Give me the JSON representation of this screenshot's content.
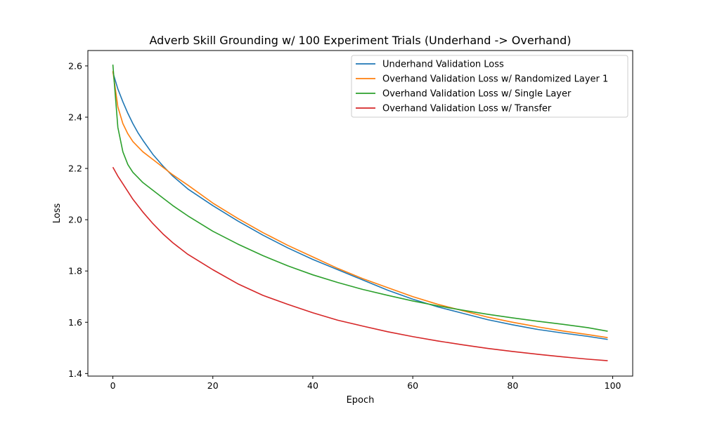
{
  "chart_data": {
    "type": "line",
    "title": "Adverb Skill Grounding w/ 100 Experiment Trials (Underhand -> Overhand)",
    "xlabel": "Epoch",
    "ylabel": "Loss",
    "xlim": [
      -5,
      104
    ],
    "ylim": [
      1.39,
      2.66
    ],
    "xticks": [
      0,
      20,
      40,
      60,
      80,
      100
    ],
    "yticks": [
      1.4,
      1.6,
      1.8,
      2.0,
      2.2,
      2.4,
      2.6
    ],
    "xtick_labels": [
      "0",
      "20",
      "40",
      "60",
      "80",
      "100"
    ],
    "ytick_labels": [
      "1.4",
      "1.6",
      "1.8",
      "2.0",
      "2.2",
      "2.4",
      "2.6"
    ],
    "grid": false,
    "legend_position": "top-right",
    "series": [
      {
        "name": "Underhand Validation Loss",
        "color": "#1f77b4",
        "x": [
          0,
          1,
          2,
          3,
          4,
          5,
          6,
          8,
          10,
          12,
          15,
          20,
          25,
          30,
          35,
          40,
          45,
          50,
          55,
          60,
          65,
          70,
          75,
          80,
          85,
          90,
          95,
          99
        ],
        "y": [
          2.575,
          2.51,
          2.46,
          2.415,
          2.375,
          2.34,
          2.31,
          2.255,
          2.21,
          2.17,
          2.12,
          2.055,
          1.995,
          1.94,
          1.89,
          1.845,
          1.805,
          1.765,
          1.725,
          1.69,
          1.66,
          1.635,
          1.61,
          1.59,
          1.572,
          1.558,
          1.545,
          1.533
        ]
      },
      {
        "name": "Overhand Validation Loss w/ Randomized Layer 1",
        "color": "#ff7f0e",
        "x": [
          0,
          1,
          2,
          3,
          4,
          5,
          6,
          8,
          10,
          12,
          15,
          20,
          25,
          30,
          35,
          40,
          45,
          50,
          55,
          60,
          65,
          70,
          75,
          80,
          85,
          90,
          95,
          99
        ],
        "y": [
          2.58,
          2.44,
          2.375,
          2.335,
          2.305,
          2.285,
          2.265,
          2.235,
          2.205,
          2.175,
          2.135,
          2.065,
          2.005,
          1.95,
          1.9,
          1.855,
          1.81,
          1.77,
          1.735,
          1.7,
          1.67,
          1.645,
          1.62,
          1.6,
          1.582,
          1.566,
          1.552,
          1.54
        ]
      },
      {
        "name": "Overhand Validation Loss w/ Single Layer",
        "color": "#2ca02c",
        "x": [
          0,
          1,
          2,
          3,
          4,
          5,
          6,
          8,
          10,
          12,
          15,
          20,
          25,
          30,
          35,
          40,
          45,
          50,
          55,
          60,
          65,
          70,
          75,
          80,
          85,
          90,
          95,
          99
        ],
        "y": [
          2.605,
          2.36,
          2.265,
          2.215,
          2.185,
          2.165,
          2.145,
          2.115,
          2.085,
          2.055,
          2.015,
          1.955,
          1.905,
          1.86,
          1.82,
          1.785,
          1.755,
          1.728,
          1.705,
          1.683,
          1.664,
          1.647,
          1.631,
          1.617,
          1.604,
          1.592,
          1.579,
          1.565
        ]
      },
      {
        "name": "Overhand Validation Loss w/ Transfer",
        "color": "#d62728",
        "x": [
          0,
          1,
          2,
          3,
          4,
          5,
          6,
          8,
          10,
          12,
          15,
          20,
          25,
          30,
          35,
          40,
          45,
          50,
          55,
          60,
          65,
          70,
          75,
          80,
          85,
          90,
          95,
          99
        ],
        "y": [
          2.205,
          2.17,
          2.14,
          2.11,
          2.08,
          2.055,
          2.03,
          1.985,
          1.945,
          1.91,
          1.865,
          1.805,
          1.75,
          1.705,
          1.67,
          1.637,
          1.608,
          1.585,
          1.563,
          1.544,
          1.527,
          1.512,
          1.498,
          1.486,
          1.475,
          1.465,
          1.456,
          1.45
        ]
      }
    ]
  }
}
